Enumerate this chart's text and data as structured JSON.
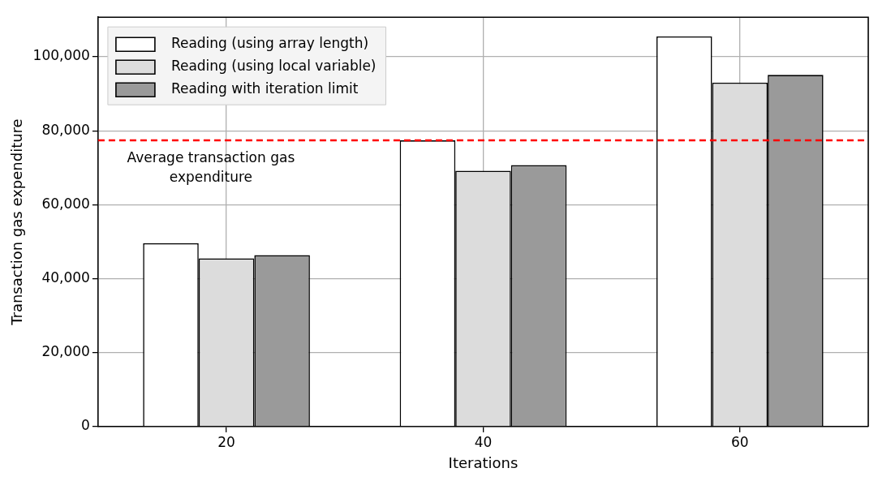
{
  "chart_data": {
    "type": "bar",
    "xlabel": "Iterations",
    "ylabel": "Transaction gas expenditure",
    "categories": [
      "20",
      "40",
      "60"
    ],
    "series": [
      {
        "name": "Reading (using array length)",
        "color": "#ffffff",
        "values": [
          49600,
          77400,
          105500
        ]
      },
      {
        "name": "Reading (using local variable)",
        "color": "#dcdcdc",
        "values": [
          45500,
          69200,
          93000
        ]
      },
      {
        "name": "Reading with iteration limit",
        "color": "#9a9a9a",
        "values": [
          46400,
          70700,
          95100
        ]
      }
    ],
    "ylim": [
      0,
      110700
    ],
    "yticks": [
      {
        "value": 0,
        "label": "0"
      },
      {
        "value": 20000,
        "label": "20,000"
      },
      {
        "value": 40000,
        "label": "40,000"
      },
      {
        "value": 60000,
        "label": "60,000"
      },
      {
        "value": 80000,
        "label": "80,000"
      },
      {
        "value": 100000,
        "label": "100,000"
      }
    ],
    "ref_lines": [
      {
        "axis": "y",
        "value": 77400,
        "label": "Average transaction gas expenditure",
        "color": "#ff0000",
        "line_style": "dashed"
      }
    ],
    "grid": true,
    "legend": "top left"
  }
}
